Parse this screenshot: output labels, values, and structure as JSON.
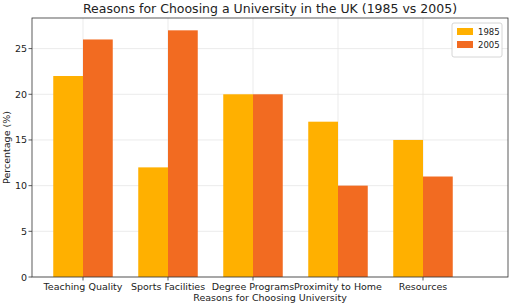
{
  "chart_data": {
    "type": "bar",
    "title": "Reasons for Choosing a University in the UK (1985 vs 2005)",
    "x_label": "Reasons for Choosing University",
    "y_label": "Percentage (%)",
    "categories": [
      "Teaching Quality",
      "Sports Facilities",
      "Degree Programs",
      "Proximity to Home",
      "Resources"
    ],
    "series": [
      {
        "name": "1985",
        "color": "#ffb000",
        "values": [
          22,
          12,
          20,
          17,
          15
        ]
      },
      {
        "name": "2005",
        "color": "#f26b21",
        "values": [
          26,
          27,
          20,
          10,
          11
        ]
      }
    ],
    "ylim": [
      0,
      28.35
    ],
    "yticks": [
      0,
      5,
      10,
      15,
      20,
      25
    ],
    "grid": true,
    "legend": "upper right"
  }
}
